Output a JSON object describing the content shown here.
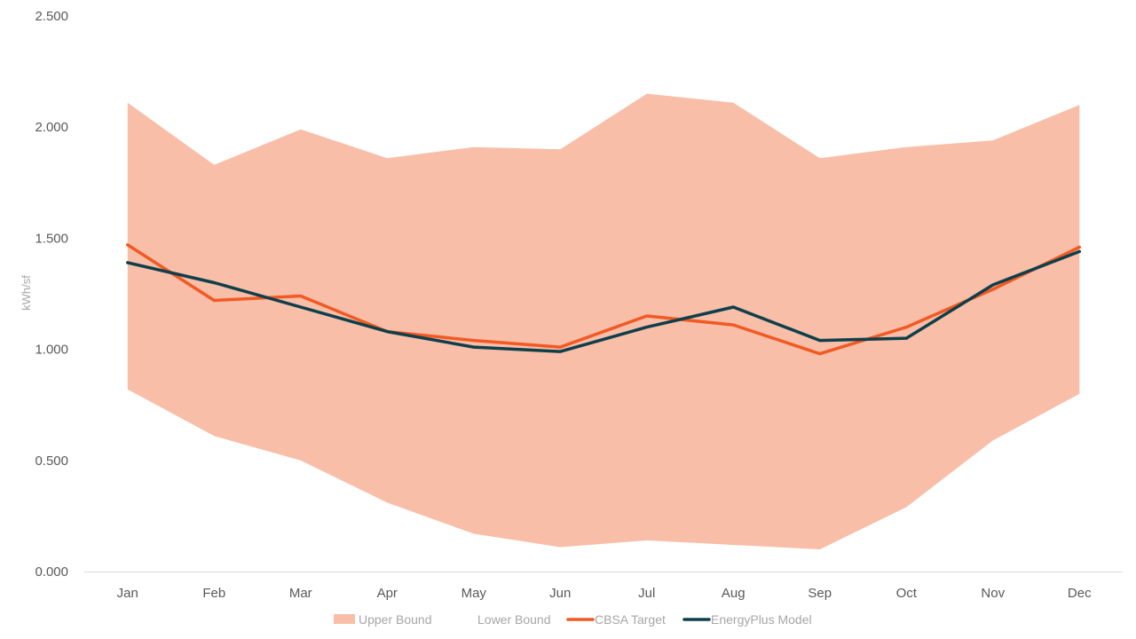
{
  "chart_data": {
    "type": "area",
    "ylabel": "kWh/sf",
    "ylim": [
      0,
      2.5
    ],
    "y_ticks": [
      "0.000",
      "0.500",
      "1.000",
      "1.500",
      "2.000",
      "2.500"
    ],
    "categories": [
      "Jan",
      "Feb",
      "Mar",
      "Apr",
      "May",
      "Jun",
      "Jul",
      "Aug",
      "Sep",
      "Oct",
      "Nov",
      "Dec"
    ],
    "grid": false,
    "legend_position": "bottom",
    "series": [
      {
        "name": "Upper Bound",
        "kind": "area-upper",
        "color": "#f8bea8",
        "values": [
          2.11,
          1.83,
          1.99,
          1.86,
          1.91,
          1.9,
          2.15,
          2.11,
          1.86,
          1.91,
          1.94,
          2.1
        ]
      },
      {
        "name": "Lower Bound",
        "kind": "area-lower",
        "color": "#ffffff",
        "values": [
          0.82,
          0.61,
          0.5,
          0.31,
          0.17,
          0.11,
          0.14,
          0.12,
          0.1,
          0.29,
          0.59,
          0.8
        ]
      },
      {
        "name": "CBSA Target",
        "kind": "line",
        "color": "#f15a24",
        "values": [
          1.47,
          1.22,
          1.24,
          1.08,
          1.04,
          1.01,
          1.15,
          1.11,
          0.98,
          1.1,
          1.27,
          1.46
        ]
      },
      {
        "name": "EnergyPlus Model",
        "kind": "line",
        "color": "#0e3f4a",
        "values": [
          1.39,
          1.3,
          1.19,
          1.08,
          1.01,
          0.99,
          1.1,
          1.19,
          1.04,
          1.05,
          1.29,
          1.44
        ]
      }
    ]
  }
}
